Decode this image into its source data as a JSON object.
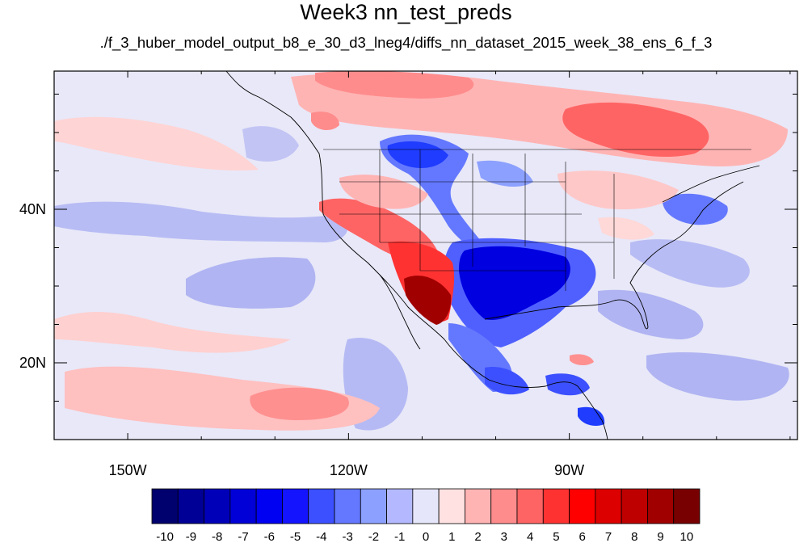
{
  "title": "Week3 nn_test_preds",
  "subtitle": "./f_3_huber_model_output_b8_e_30_d3_lneg4/diffs_nn_dataset_2015_week_38_ens_6_f_3",
  "map": {
    "lon_range": [
      -160,
      -59
    ],
    "lat_range": [
      10,
      58
    ],
    "x_tick_labels": [
      {
        "lon": -150,
        "text": "150W"
      },
      {
        "lon": -120,
        "text": "120W"
      },
      {
        "lon": -90,
        "text": "90W"
      }
    ],
    "y_tick_labels": [
      {
        "lat": 40,
        "text": "40N"
      },
      {
        "lat": 20,
        "text": "20N"
      }
    ]
  },
  "colorbar": {
    "labels": [
      "-10",
      "-9",
      "-8",
      "-7",
      "-6",
      "-5",
      "-4",
      "-3",
      "-2",
      "-1",
      "0",
      "1",
      "2",
      "3",
      "4",
      "5",
      "6",
      "7",
      "8",
      "9",
      "10"
    ],
    "colors": [
      "#00006e",
      "#000096",
      "#0000b9",
      "#0000d7",
      "#0000f2",
      "#1414ff",
      "#3c50ff",
      "#6478ff",
      "#8ca0ff",
      "#b4b9ff",
      "#e6e6fa",
      "#ffe1e1",
      "#ffb4b4",
      "#ff8c8c",
      "#ff6464",
      "#ff3232",
      "#ff0000",
      "#dc0000",
      "#be0000",
      "#a00000",
      "#780000"
    ]
  }
}
